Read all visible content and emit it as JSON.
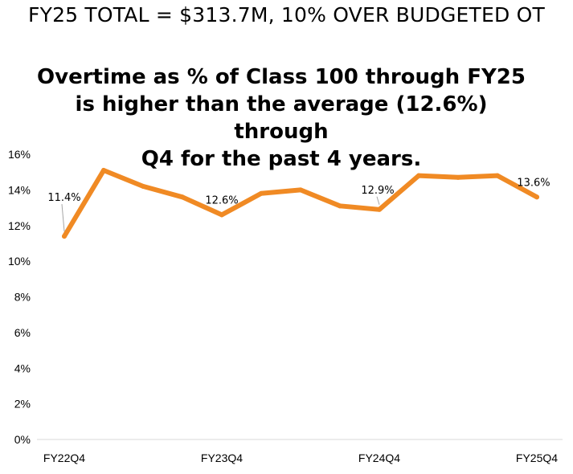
{
  "headline": "FY25 TOTAL = $313.7M, 10% OVER BUDGETED OT",
  "chart_data": {
    "type": "line",
    "title_lines": [
      "Overtime as % of Class 100 through FY25",
      "is higher than the average (12.6%) through",
      "Q4 for the past 4 years."
    ],
    "x": [
      "FY22Q4",
      "",
      "",
      "",
      "FY23Q4",
      "",
      "",
      "",
      "FY24Q4",
      "",
      "",
      "",
      "FY25Q4"
    ],
    "x_tick_labels": [
      "FY22Q4",
      "FY23Q4",
      "FY24Q4",
      "FY25Q4"
    ],
    "series": [
      {
        "values": [
          11.4,
          15.1,
          14.2,
          13.6,
          12.6,
          13.8,
          14.0,
          13.1,
          12.9,
          14.8,
          14.7,
          14.8,
          13.6
        ],
        "color": "#F08A24"
      }
    ],
    "data_labels": [
      {
        "index": 0,
        "text": "11.4%"
      },
      {
        "index": 4,
        "text": "12.6%"
      },
      {
        "index": 8,
        "text": "12.9%"
      },
      {
        "index": 12,
        "text": "13.6%"
      }
    ],
    "y_ticks": [
      "0%",
      "2%",
      "4%",
      "6%",
      "8%",
      "10%",
      "12%",
      "14%",
      "16%"
    ],
    "ylim": [
      0,
      16
    ],
    "grid": false,
    "legend": "none"
  }
}
